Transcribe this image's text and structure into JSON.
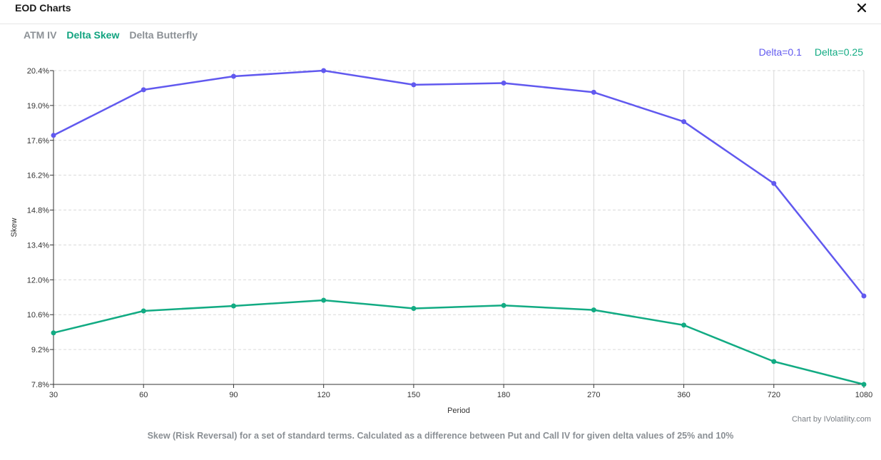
{
  "header": {
    "title": "EOD Charts",
    "close_label": "×"
  },
  "tabs": [
    {
      "label": "ATM IV",
      "active": false
    },
    {
      "label": "Delta Skew",
      "active": true
    },
    {
      "label": "Delta Butterfly",
      "active": false
    }
  ],
  "chart_data": {
    "type": "line",
    "title": "",
    "xlabel": "Period",
    "ylabel": "Skew",
    "categories": [
      "30",
      "60",
      "90",
      "120",
      "150",
      "180",
      "270",
      "360",
      "720",
      "1080"
    ],
    "yticks": [
      "7.8%",
      "9.2%",
      "10.6%",
      "12.0%",
      "13.4%",
      "14.8%",
      "16.2%",
      "17.6%",
      "19.0%",
      "20.4%"
    ],
    "ylim": [
      7.8,
      20.4
    ],
    "grid": true,
    "legend_position": "top-right",
    "series": [
      {
        "name": "Delta=0.1",
        "color": "#6159ef",
        "values": [
          17.8,
          19.63,
          20.17,
          20.4,
          19.83,
          19.9,
          19.53,
          18.35,
          15.87,
          11.35
        ]
      },
      {
        "name": "Delta=0.25",
        "color": "#12ab83",
        "values": [
          9.87,
          10.75,
          10.95,
          11.18,
          10.85,
          10.97,
          10.79,
          10.18,
          8.72,
          7.8
        ]
      }
    ]
  },
  "footer": {
    "credit": "Chart by IVolatility.com",
    "caption": "Skew (Risk Reversal) for a set of standard terms. Calculated as a difference between Put and Call IV for given delta values of 25% and 10%"
  }
}
